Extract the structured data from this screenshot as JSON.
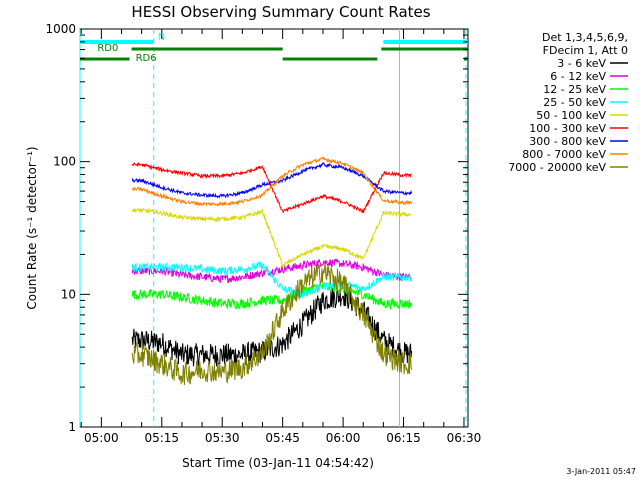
{
  "chart_data": {
    "type": "line",
    "title": "HESSI Observing Summary Count Rates",
    "xlabel": "Start Time (03-Jan-11 04:54:42)",
    "ylabel": "Count Rate (s⁻¹ detector⁻¹)",
    "yscale": "log",
    "ylim": [
      1,
      1000
    ],
    "xlim": [
      "04:54:42",
      "06:31:00"
    ],
    "x_ticks": [
      "05:00",
      "05:15",
      "05:30",
      "05:45",
      "06:00",
      "06:15",
      "06:30"
    ],
    "y_ticks": [
      "1",
      "10",
      "100",
      "1000"
    ],
    "timestamp": "3-Jan-2011 05:47",
    "legend_header": [
      "Det 1,3,4,5,6,9,",
      "FDecim 1, Att 0"
    ],
    "flags": [
      {
        "label": "N",
        "color": "#00ffff",
        "segments": [
          [
            "04:54:42",
            "05:13:00"
          ],
          [
            "06:10:00",
            "06:31:00"
          ]
        ]
      },
      {
        "label": "RD0",
        "color": "#008000",
        "segments": [
          [
            "05:07:30",
            "05:45:00"
          ],
          [
            "06:09:30",
            "06:31:00"
          ]
        ]
      },
      {
        "label": "RD6",
        "color": "#008000",
        "segments": [
          [
            "04:54:42",
            "05:07:00"
          ],
          [
            "05:45:00",
            "06:08:30"
          ],
          [
            "06:30:00",
            "06:31:00"
          ]
        ]
      }
    ],
    "vlines": [
      {
        "time": "04:54:42",
        "style": "solid",
        "color": "#00ffff"
      },
      {
        "time": "05:13:00",
        "style": "dashed",
        "color": "#00ffff"
      },
      {
        "time": "06:14:00",
        "style": "solid",
        "color": "#00ffff"
      },
      {
        "time": "06:30:30",
        "style": "dashed",
        "color": "#00ffff"
      }
    ],
    "x": [
      "05:10",
      "05:15",
      "05:20",
      "05:25",
      "05:30",
      "05:35",
      "05:40",
      "05:45",
      "05:50",
      "05:55",
      "06:00",
      "06:05",
      "06:10",
      "06:15"
    ],
    "series": [
      {
        "name": "3 - 6 keV",
        "color": "#000000",
        "values": [
          4.5,
          4.3,
          3.5,
          3.5,
          3.5,
          3.5,
          3.7,
          4.2,
          6.0,
          9.0,
          10.0,
          7.5,
          4.5,
          3.6
        ]
      },
      {
        "name": "6 - 12 keV",
        "color": "#e000e0",
        "values": [
          15,
          15,
          14,
          13.5,
          13,
          13.5,
          14.5,
          15.5,
          16.5,
          17.5,
          17,
          16,
          14,
          13.5
        ]
      },
      {
        "name": "12 - 25 keV",
        "color": "#00ff00",
        "values": [
          10,
          10,
          9.5,
          9,
          8.5,
          8.5,
          9,
          9,
          10.5,
          11.5,
          11,
          10,
          8.5,
          8.5
        ]
      },
      {
        "name": "25 - 50 keV",
        "color": "#00ffff",
        "values": [
          16,
          16,
          16,
          15.5,
          15,
          15.5,
          16.5,
          11,
          10,
          11.5,
          12,
          11,
          13.5,
          13.5
        ]
      },
      {
        "name": "50 - 100 keV",
        "color": "#d8d800",
        "values": [
          43,
          41,
          38,
          37,
          37,
          38,
          42,
          16.5,
          20,
          23,
          22,
          18.5,
          41,
          40
        ]
      },
      {
        "name": "100 - 300 keV",
        "color": "#ff0000",
        "values": [
          95,
          87,
          82,
          78,
          78,
          82,
          92,
          42,
          48,
          55,
          50,
          42,
          82,
          79
        ]
      },
      {
        "name": "300 - 800 keV",
        "color": "#0000ff",
        "values": [
          72,
          64,
          58,
          56,
          55,
          58,
          67,
          72,
          85,
          95,
          90,
          78,
          60,
          58
        ]
      },
      {
        "name": "800 - 7000 keV",
        "color": "#ff8000",
        "values": [
          62,
          55,
          50,
          48,
          48,
          50,
          56,
          78,
          95,
          105,
          97,
          82,
          51,
          49
        ]
      },
      {
        "name": "7000 - 20000 keV",
        "color": "#808000",
        "values": [
          3.5,
          3.0,
          2.5,
          2.7,
          2.6,
          2.8,
          3.6,
          7.5,
          12,
          15,
          12,
          7,
          3.6,
          3.0
        ]
      }
    ]
  }
}
